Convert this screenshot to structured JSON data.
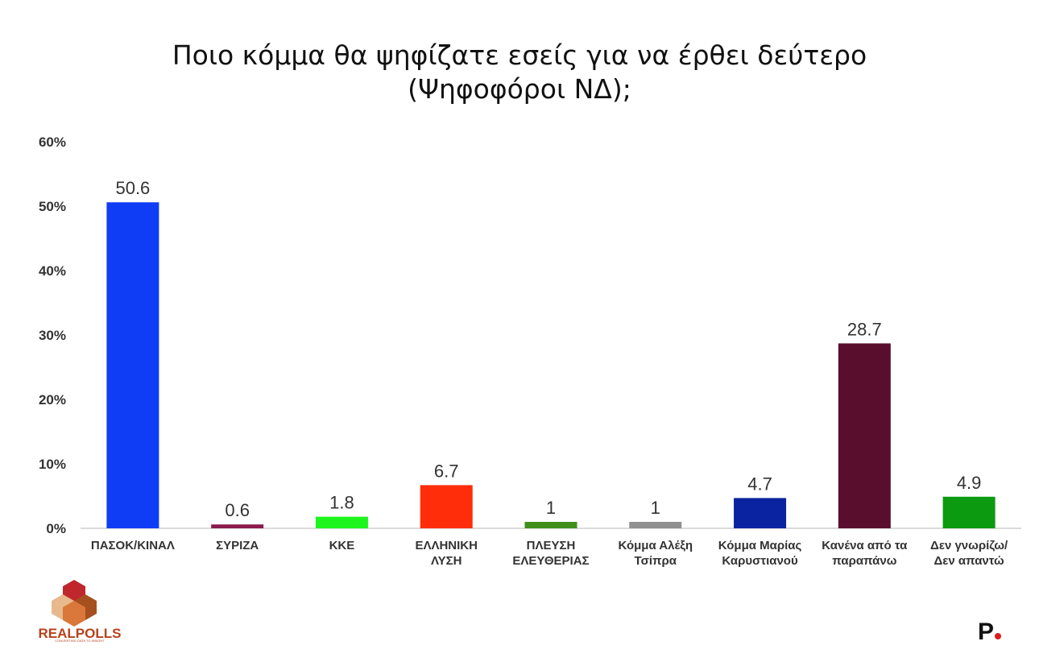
{
  "chart_data": {
    "type": "bar",
    "title_lines": [
      "Ποιο κόμμα θα ψηφίζατε εσείς για να έρθει δεύτερο",
      "(Ψηφοφόροι ΝΔ);"
    ],
    "categories": [
      [
        "ΠΑΣΟΚ/ΚΙΝΑΛ"
      ],
      [
        "ΣΥΡΙΖΑ"
      ],
      [
        "ΚΚΕ"
      ],
      [
        "ΕΛΛΗΝΙΚΗ",
        "ΛΥΣΗ"
      ],
      [
        "ΠΛΕΥΣΗ",
        "ΕΛΕΥΘΕΡΙΑΣ"
      ],
      [
        "Κόμμα Αλέξη",
        "Τσίπρα"
      ],
      [
        "Κόμμα Μαρίας",
        "Καρυστιανού"
      ],
      [
        "Κανένα από  τα",
        "παραπάνω"
      ],
      [
        "Δεν γνωρίζω/",
        "Δεν απαντώ"
      ]
    ],
    "values": [
      50.6,
      0.6,
      1.8,
      6.7,
      1,
      1,
      4.7,
      28.7,
      4.9
    ],
    "value_labels": [
      "50.6",
      "0.6",
      "1.8",
      "6.7",
      "1",
      "1",
      "4.7",
      "28.7",
      "4.9"
    ],
    "colors": [
      "#0f3df5",
      "#8b1a4d",
      "#1ef51e",
      "#ff2d0a",
      "#3f8f1a",
      "#909090",
      "#0a23a0",
      "#5a0e2e",
      "#0c9a10"
    ],
    "y_ticks": [
      "0%",
      "10%",
      "20%",
      "30%",
      "40%",
      "50%",
      "60%"
    ],
    "ylim": [
      0,
      60
    ],
    "grid": false,
    "xlabel": "",
    "ylabel": ""
  },
  "logos": {
    "brand_text": "REALPOLLS",
    "brand_tagline": "CONVERTING DATA TO INSIGHT",
    "brand_text_color": "#b5421c",
    "p_mark": "P",
    "p_dot_color": "#e01b1b"
  }
}
